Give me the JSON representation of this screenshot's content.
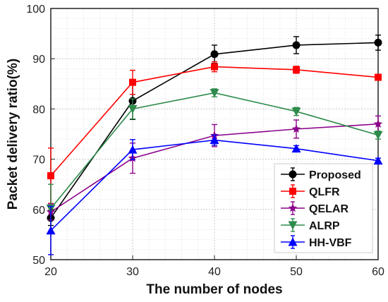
{
  "chart_data": {
    "type": "line",
    "xlabel": "The number of nodes",
    "ylabel": "Packet delivery ratio(%)",
    "x": [
      20,
      30,
      40,
      50,
      60
    ],
    "xlim": [
      20,
      60
    ],
    "ylim": [
      50,
      100
    ],
    "xticks": [
      "20",
      "30",
      "40",
      "50",
      "60"
    ],
    "yticks": [
      "50",
      "60",
      "70",
      "80",
      "90",
      "100"
    ],
    "grid": true,
    "legend_position": "bottom-right",
    "series": [
      {
        "name": "Proposed",
        "color": "#000000",
        "marker": "circle",
        "values": [
          58.3,
          81.6,
          90.9,
          92.7,
          93.2
        ],
        "errors": [
          1.5,
          3.7,
          1.8,
          1.7,
          1.5
        ]
      },
      {
        "name": "QLFR",
        "color": "#ff0000",
        "marker": "square",
        "values": [
          66.7,
          85.3,
          88.4,
          87.8,
          86.3
        ],
        "errors": [
          5.5,
          2.4,
          1.0,
          0.7,
          0.6
        ]
      },
      {
        "name": "QELAR",
        "color": "#8b008b",
        "marker": "star",
        "values": [
          59.5,
          70.2,
          74.7,
          76.0,
          77.0
        ],
        "errors": [
          1.6,
          3.0,
          2.2,
          1.8,
          1.6
        ]
      },
      {
        "name": "ALRP",
        "color": "#2e8b4b",
        "marker": "triangle-down",
        "values": [
          60.2,
          80.0,
          83.2,
          79.5,
          74.8
        ],
        "errors": [
          4.8,
          2.0,
          0.8,
          0.8,
          0.8
        ]
      },
      {
        "name": "HH-VBF",
        "color": "#0000ff",
        "marker": "triangle-up",
        "values": [
          55.8,
          71.9,
          73.8,
          72.1,
          69.7
        ],
        "errors": [
          4.8,
          2.0,
          1.0,
          0.6,
          0.5
        ]
      }
    ]
  }
}
